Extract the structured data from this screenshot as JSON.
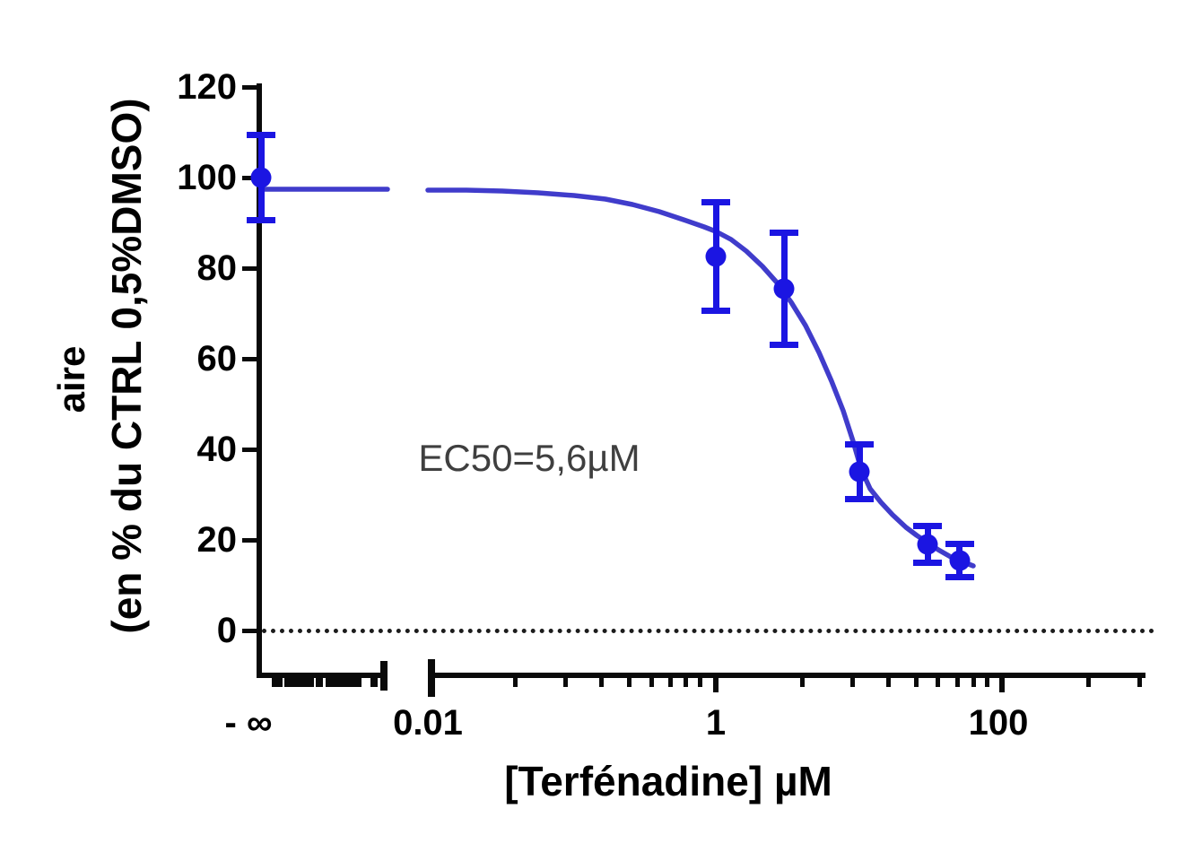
{
  "figure": {
    "y_axis": {
      "title_line1": "aire",
      "title_line2": "(en % du CTRL 0,5%DMSO)",
      "tick_labels": [
        "120",
        "100",
        "80",
        "60",
        "40",
        "20",
        "0"
      ],
      "tick_values": [
        120,
        100,
        80,
        60,
        40,
        20,
        0
      ]
    },
    "x_axis": {
      "title": "[Terfénadine] µM",
      "tick_labels": [
        "- ∞",
        "0.01",
        "1",
        "100"
      ]
    },
    "annotation": {
      "ec50_text": "EC50=5,6µM"
    },
    "colors": {
      "marker_blue": "#1b15e2",
      "curve_blue": "#403ccb",
      "axis_black": "#0a0a0a",
      "annotation_gray": "#3f3f3f",
      "background": "#ffffff"
    }
  },
  "chart_data": {
    "type": "scatter",
    "subtype": "dose-response-inhibition-curve",
    "x_scale": "log",
    "x": [
      "-inf",
      1,
      3,
      10,
      30,
      50
    ],
    "x_unit": "µM",
    "series": [
      {
        "name": "Terfénadine",
        "values": [
          100,
          82.5,
          75.5,
          35,
          19,
          15.5
        ],
        "errors": [
          9.4,
          12,
          12.4,
          6,
          4,
          3.7
        ]
      }
    ],
    "fit_curve": {
      "top": 97.5,
      "bottom": 13.5,
      "ec50_uM": 5.6,
      "shape": "sigmoidal"
    },
    "title": "",
    "xlabel": "[Terfénadine] µM",
    "ylabel": "aire (en % du CTRL 0,5%DMSO)",
    "ylim": [
      0,
      120
    ],
    "y_ticks": [
      0,
      20,
      40,
      60,
      80,
      100,
      120
    ],
    "x_tick_labels": [
      "- ∞",
      "0.01",
      "1",
      "100"
    ],
    "axis_break_after_control": true,
    "reference_line_y": 0,
    "grid": false,
    "legend": false,
    "annotations": [
      "EC50=5,6µM"
    ]
  }
}
